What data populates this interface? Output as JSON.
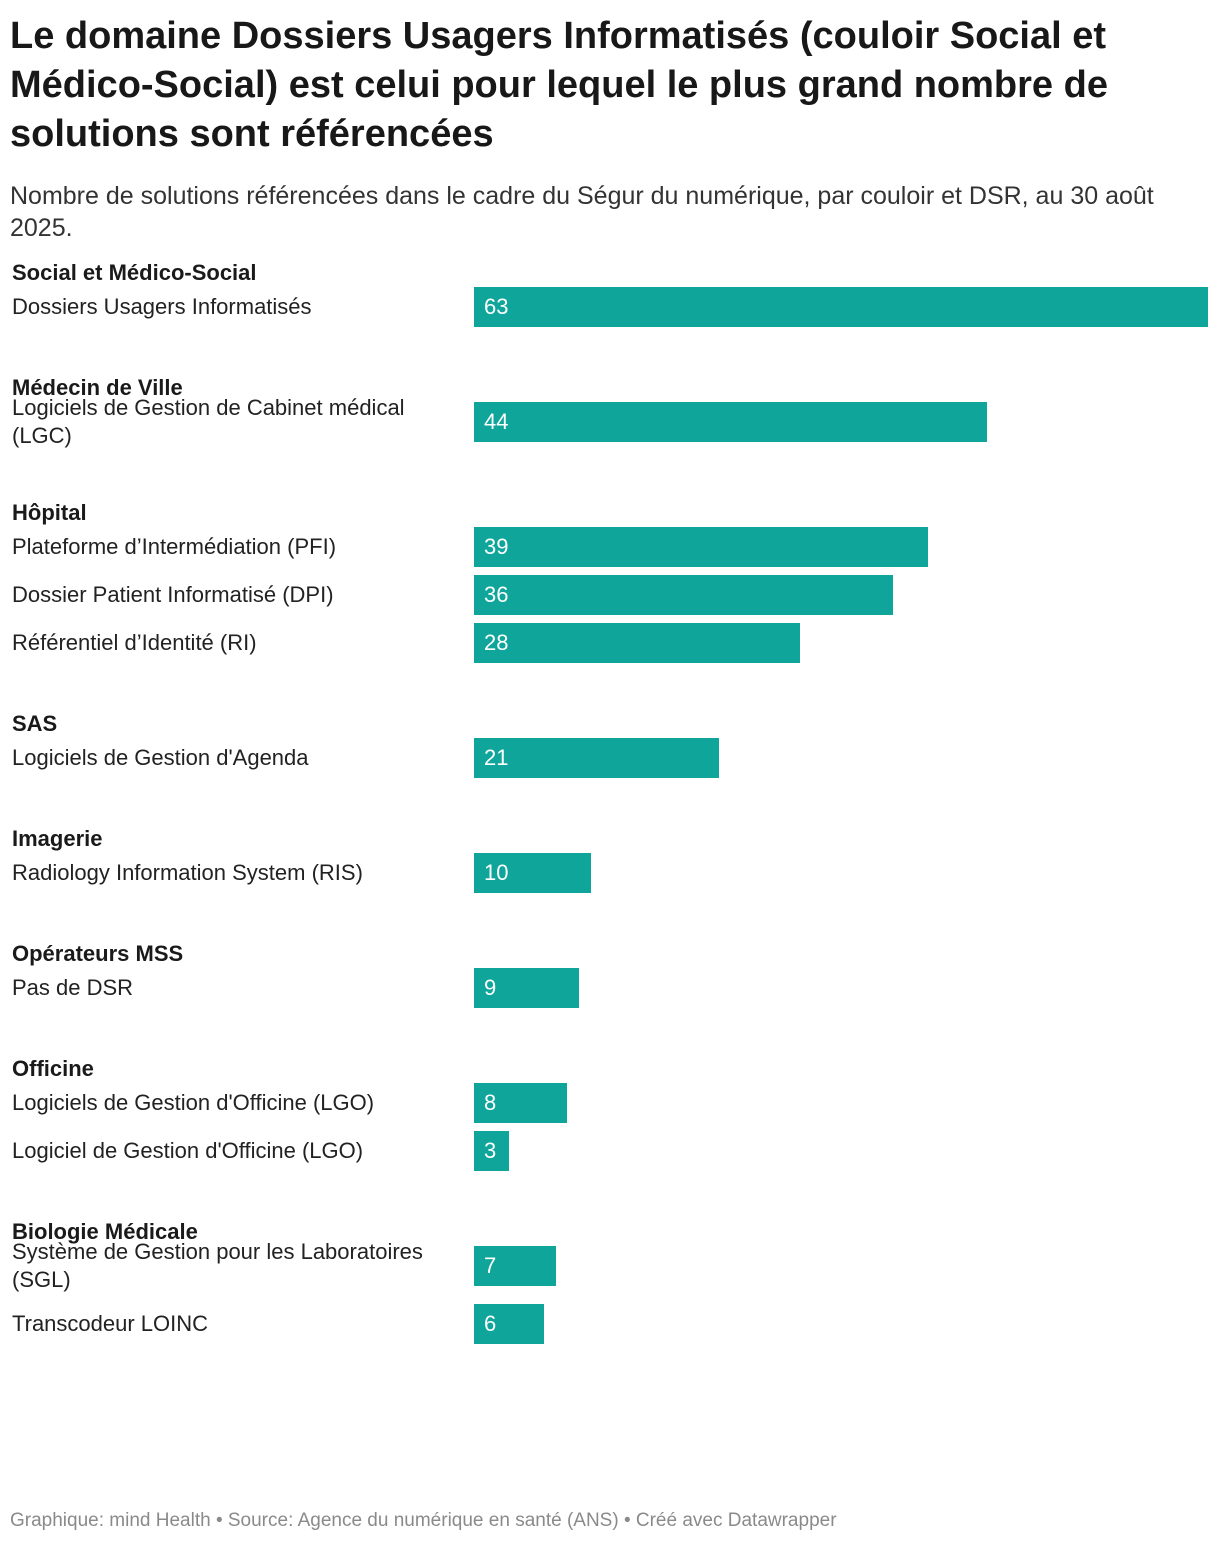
{
  "title": "Le domaine Dossiers Usagers Informatisés (couloir Social et Médico-Social) est celui pour lequel le plus grand nombre de solutions sont référencées",
  "subtitle": "Nombre de solutions référencées dans le cadre du Ségur du numérique, par couloir et DSR, au 30 août 2025.",
  "footer": "Graphique: mind Health • Source: Agence du numérique en santé (ANS) • Créé avec Datawrapper",
  "colors": {
    "bar": "#0fa59b",
    "bar_text": "#ffffff",
    "footer": "#8a8a8a"
  },
  "chart_data": {
    "type": "bar",
    "orientation": "horizontal",
    "grid": false,
    "xlim": [
      0,
      63
    ],
    "groups": [
      {
        "name": "Social et Médico-Social",
        "rows": [
          {
            "label": "Dossiers Usagers Informatisés",
            "value": 63
          }
        ]
      },
      {
        "name": "Médecin de Ville",
        "rows": [
          {
            "label": "Logiciels de Gestion de Cabinet médical (LGC)",
            "value": 44
          }
        ]
      },
      {
        "name": "Hôpital",
        "rows": [
          {
            "label": "Plateforme d’Intermédiation (PFI)",
            "value": 39
          },
          {
            "label": "Dossier Patient Informatisé (DPI)",
            "value": 36
          },
          {
            "label": "Référentiel d’Identité (RI)",
            "value": 28
          }
        ]
      },
      {
        "name": "SAS",
        "rows": [
          {
            "label": "Logiciels de Gestion d'Agenda",
            "value": 21
          }
        ]
      },
      {
        "name": "Imagerie",
        "rows": [
          {
            "label": "Radiology Information System (RIS)",
            "value": 10
          }
        ]
      },
      {
        "name": "Opérateurs MSS",
        "rows": [
          {
            "label": "Pas de DSR",
            "value": 9
          }
        ]
      },
      {
        "name": "Officine",
        "rows": [
          {
            "label": "Logiciels de Gestion d'Officine (LGO)",
            "value": 8
          },
          {
            "label": "Logiciel de Gestion d'Officine (LGO)",
            "value": 3
          }
        ]
      },
      {
        "name": "Biologie Médicale",
        "rows": [
          {
            "label": "Système de Gestion pour les Laboratoires (SGL)",
            "value": 7
          },
          {
            "label": "Transcodeur LOINC",
            "value": 6
          }
        ]
      }
    ]
  }
}
